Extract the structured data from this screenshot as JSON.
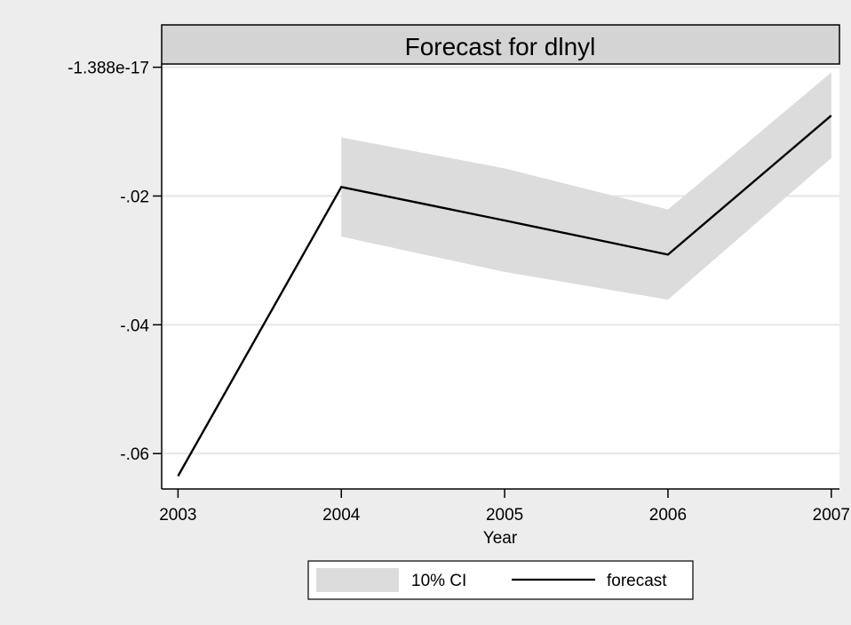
{
  "chart_data": {
    "type": "line",
    "title": "Forecast for dlnyl",
    "xlabel": "Year",
    "ylabel": "",
    "x": [
      2003,
      2004,
      2005,
      2006,
      2007
    ],
    "xlim": [
      2002.9,
      2007.05
    ],
    "ylim": [
      -0.0655,
      0.0005
    ],
    "x_ticks": [
      {
        "value": 2003,
        "label": "2003"
      },
      {
        "value": 2004,
        "label": "2004"
      },
      {
        "value": 2005,
        "label": "2005"
      },
      {
        "value": 2006,
        "label": "2006"
      },
      {
        "value": 2007,
        "label": "2007"
      }
    ],
    "y_ticks": [
      {
        "value": 0,
        "label": "-1.388e-17"
      },
      {
        "value": -0.02,
        "label": "-.02"
      },
      {
        "value": -0.04,
        "label": "-.04"
      },
      {
        "value": -0.06,
        "label": "-.06"
      }
    ],
    "grid": true,
    "series": [
      {
        "name": "forecast",
        "kind": "line",
        "color": "#000000",
        "values": [
          -0.0635,
          -0.0186,
          -0.0238,
          -0.0291,
          -0.0075
        ]
      },
      {
        "name": "10% CI",
        "kind": "band",
        "color": "#dcdcdc",
        "x": [
          2004,
          2005,
          2006,
          2007
        ],
        "lower": [
          -0.0263,
          -0.0318,
          -0.0361,
          -0.0141
        ],
        "upper": [
          -0.0109,
          -0.0157,
          -0.0221,
          -0.0008
        ]
      }
    ],
    "legend": {
      "position": "bottom",
      "entries": [
        "10% CI",
        "forecast"
      ]
    }
  }
}
